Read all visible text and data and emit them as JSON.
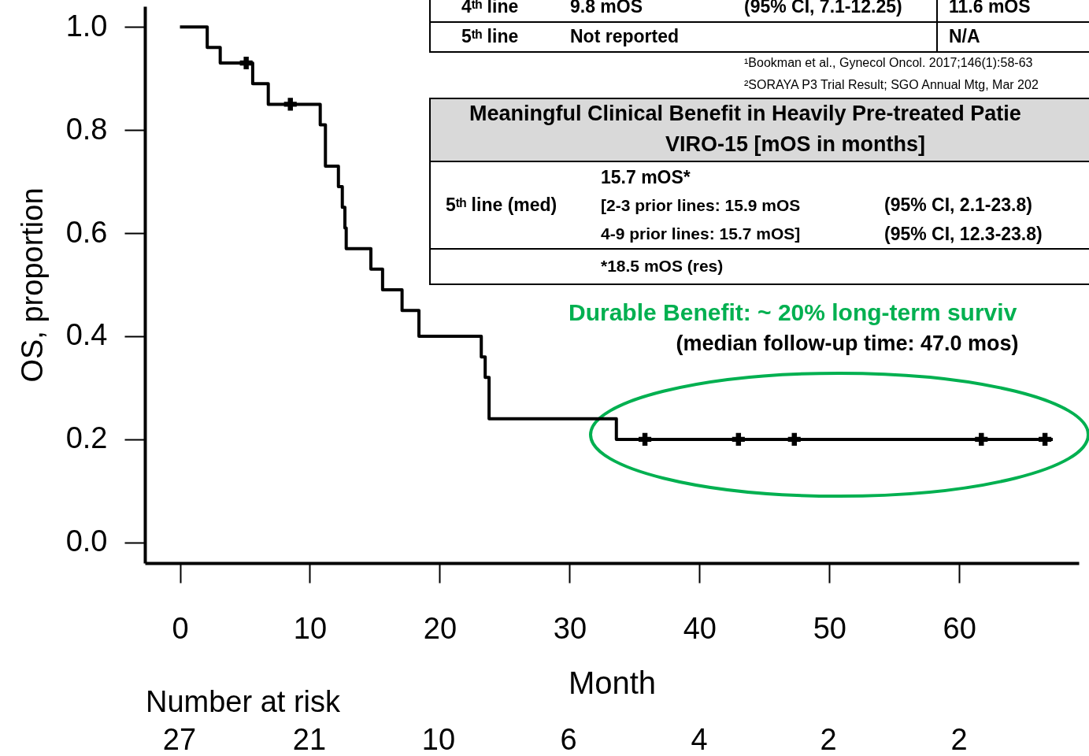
{
  "chart_data": {
    "type": "step",
    "xlabel": "Month",
    "ylabel": "OS, proportion",
    "xlim": [
      -2.7,
      69.2
    ],
    "xticks": [
      0,
      10,
      20,
      30,
      40,
      50,
      60
    ],
    "ylim": [
      -0.04,
      1.04
    ],
    "yticks": [
      {
        "value": 0,
        "label": "0.0"
      },
      {
        "value": 0.2,
        "label": "0.2"
      },
      {
        "value": 0.4,
        "label": "0.4"
      },
      {
        "value": 0.6,
        "label": "0.6"
      },
      {
        "value": 0.8,
        "label": "0.8"
      },
      {
        "value": 1,
        "label": "1.0"
      }
    ],
    "grid": false,
    "series": [
      {
        "color": "#000000",
        "marker": "none",
        "x": [
          0,
          2.1,
          3.1,
          5.6,
          6.8,
          10.8,
          11.2,
          12.2,
          12.5,
          12.7,
          12.8,
          14.7,
          15.6,
          17.1,
          18.4,
          23.2,
          23.5,
          23.8,
          33.6,
          67.2
        ],
        "values": [
          1.0,
          0.96,
          0.93,
          0.89,
          0.85,
          0.81,
          0.73,
          0.69,
          0.65,
          0.61,
          0.57,
          0.53,
          0.49,
          0.45,
          0.4,
          0.36,
          0.32,
          0.24,
          0.2,
          0.2
        ]
      },
      {
        "type": "scatter",
        "color": "#000000",
        "marker": "cross",
        "x": [
          5.1,
          8.5,
          35.8,
          43.0,
          47.3,
          61.7,
          66.6
        ],
        "values": [
          0.93,
          0.85,
          0.2,
          0.2,
          0.2,
          0.2,
          0.2
        ]
      }
    ],
    "annotations": [
      "4ᵗʰ line",
      "9.8 mOS",
      "(95% CI, 7.1-12.25)",
      "11.6 mOS",
      "5ᵗʰ line",
      "Not reported",
      "N/A",
      "¹Bookman et al., Gynecol Oncol. 2017;146(1):58-63",
      "²SORAYA P3 Trial Result; SGO Annual  Mtg, Mar 202",
      "Meaningful Clinical Benefit in Heavily Pre-treated Patie",
      "VIRO-15 [mOS in months]",
      "5ᵗʰ line (med)",
      "15.7 mOS*",
      "[2-3 prior lines: 15.9 mOS",
      " 4-9 prior lines: 15.7 mOS]",
      "(95% CI, 2.1-23.8)",
      "(95% CI, 12.3-23.8)",
      "*18.5 mOS (res)",
      "Durable Benefit: ~ 20% long-term surviv",
      "(median follow-up time: 47.0 mos)",
      "Number at risk",
      "27",
      "21",
      "10",
      "6",
      "4",
      "2",
      "2"
    ]
  }
}
